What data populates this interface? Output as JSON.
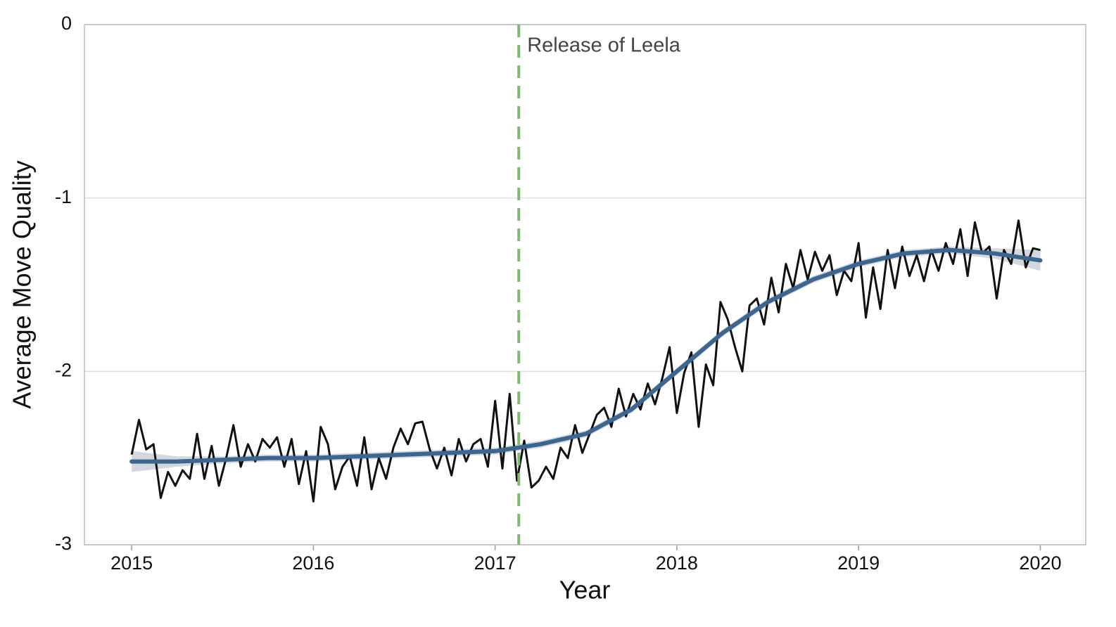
{
  "chart_data": {
    "type": "line",
    "xlabel": "Year",
    "ylabel": "Average Move Quality",
    "xlim": [
      2014.74,
      2020.25
    ],
    "ylim": [
      -3,
      0
    ],
    "xticks": [
      2015,
      2016,
      2017,
      2018,
      2019,
      2020
    ],
    "yticks": [
      0,
      -1,
      -2,
      -3
    ],
    "grid": true,
    "x": [
      2015,
      2015.04,
      2015.08,
      2015.12,
      2015.16,
      2015.2,
      2015.24,
      2015.28,
      2015.32,
      2015.36,
      2015.4,
      2015.44,
      2015.48,
      2015.52,
      2015.56,
      2015.6,
      2015.64,
      2015.68,
      2015.72,
      2015.76,
      2015.8,
      2015.84,
      2015.88,
      2015.92,
      2015.96,
      2016,
      2016.04,
      2016.08,
      2016.12,
      2016.16,
      2016.2,
      2016.24,
      2016.28,
      2016.32,
      2016.36,
      2016.4,
      2016.44,
      2016.48,
      2016.52,
      2016.56,
      2016.6,
      2016.64,
      2016.68,
      2016.72,
      2016.76,
      2016.8,
      2016.84,
      2016.88,
      2016.92,
      2016.96,
      2017,
      2017.04,
      2017.08,
      2017.12,
      2017.16,
      2017.2,
      2017.24,
      2017.28,
      2017.32,
      2017.36,
      2017.4,
      2017.44,
      2017.48,
      2017.52,
      2017.56,
      2017.6,
      2017.64,
      2017.68,
      2017.72,
      2017.76,
      2017.8,
      2017.84,
      2017.88,
      2017.92,
      2017.96,
      2018,
      2018.04,
      2018.08,
      2018.12,
      2018.16,
      2018.2,
      2018.24,
      2018.28,
      2018.32,
      2018.36,
      2018.4,
      2018.44,
      2018.48,
      2018.52,
      2018.56,
      2018.6,
      2018.64,
      2018.68,
      2018.72,
      2018.76,
      2018.8,
      2018.84,
      2018.88,
      2018.92,
      2018.96,
      2019,
      2019.04,
      2019.08,
      2019.12,
      2019.16,
      2019.2,
      2019.24,
      2019.28,
      2019.32,
      2019.36,
      2019.4,
      2019.44,
      2019.48,
      2019.52,
      2019.56,
      2019.6,
      2019.64,
      2019.68,
      2019.72,
      2019.76,
      2019.8,
      2019.84,
      2019.88,
      2019.92,
      2019.96,
      2020
    ],
    "series": [
      {
        "color": "#111111",
        "values": [
          -2.48,
          -2.28,
          -2.45,
          -2.42,
          -2.73,
          -2.58,
          -2.66,
          -2.57,
          -2.62,
          -2.36,
          -2.62,
          -2.43,
          -2.66,
          -2.5,
          -2.31,
          -2.55,
          -2.42,
          -2.52,
          -2.39,
          -2.44,
          -2.38,
          -2.55,
          -2.39,
          -2.65,
          -2.46,
          -2.75,
          -2.32,
          -2.42,
          -2.68,
          -2.55,
          -2.49,
          -2.66,
          -2.38,
          -2.68,
          -2.5,
          -2.62,
          -2.44,
          -2.33,
          -2.42,
          -2.3,
          -2.29,
          -2.45,
          -2.56,
          -2.44,
          -2.6,
          -2.39,
          -2.52,
          -2.42,
          -2.39,
          -2.55,
          -2.17,
          -2.56,
          -2.13,
          -2.63,
          -2.4,
          -2.67,
          -2.63,
          -2.55,
          -2.62,
          -2.44,
          -2.5,
          -2.31,
          -2.47,
          -2.36,
          -2.25,
          -2.21,
          -2.32,
          -2.1,
          -2.26,
          -2.13,
          -2.22,
          -2.07,
          -2.19,
          -2.04,
          -1.86,
          -2.24,
          -2.01,
          -1.89,
          -2.32,
          -1.96,
          -2.08,
          -1.6,
          -1.7,
          -1.86,
          -2.0,
          -1.62,
          -1.58,
          -1.73,
          -1.46,
          -1.66,
          -1.38,
          -1.52,
          -1.3,
          -1.47,
          -1.31,
          -1.42,
          -1.33,
          -1.56,
          -1.42,
          -1.48,
          -1.26,
          -1.69,
          -1.4,
          -1.64,
          -1.3,
          -1.52,
          -1.28,
          -1.45,
          -1.33,
          -1.48,
          -1.3,
          -1.42,
          -1.26,
          -1.38,
          -1.18,
          -1.45,
          -1.14,
          -1.32,
          -1.28,
          -1.58,
          -1.3,
          -1.38,
          -1.13,
          -1.4,
          -1.29,
          -1.3
        ]
      }
    ],
    "trend": {
      "color": "#3b6690",
      "band_color": "#c9cdd3",
      "x": [
        2015,
        2015.25,
        2015.5,
        2015.75,
        2016,
        2016.25,
        2016.5,
        2016.75,
        2017,
        2017.25,
        2017.5,
        2017.75,
        2018,
        2018.25,
        2018.5,
        2018.75,
        2019,
        2019.25,
        2019.5,
        2019.75,
        2020
      ],
      "values": [
        -2.52,
        -2.52,
        -2.51,
        -2.5,
        -2.5,
        -2.49,
        -2.48,
        -2.47,
        -2.46,
        -2.42,
        -2.36,
        -2.22,
        -2.0,
        -1.78,
        -1.6,
        -1.47,
        -1.38,
        -1.32,
        -1.3,
        -1.32,
        -1.36
      ],
      "lower": [
        -2.58,
        -2.55,
        -2.53,
        -2.52,
        -2.52,
        -2.51,
        -2.5,
        -2.49,
        -2.48,
        -2.44,
        -2.38,
        -2.24,
        -2.02,
        -1.8,
        -1.62,
        -1.49,
        -1.4,
        -1.34,
        -1.32,
        -1.35,
        -1.42
      ],
      "upper": [
        -2.46,
        -2.49,
        -2.49,
        -2.48,
        -2.48,
        -2.47,
        -2.46,
        -2.45,
        -2.44,
        -2.4,
        -2.34,
        -2.2,
        -1.98,
        -1.76,
        -1.58,
        -1.45,
        -1.36,
        -1.3,
        -1.28,
        -1.29,
        -1.3
      ]
    },
    "annotation": {
      "text": "Release of Leela",
      "x": 2017.13,
      "color": "#7dbb6f"
    }
  }
}
